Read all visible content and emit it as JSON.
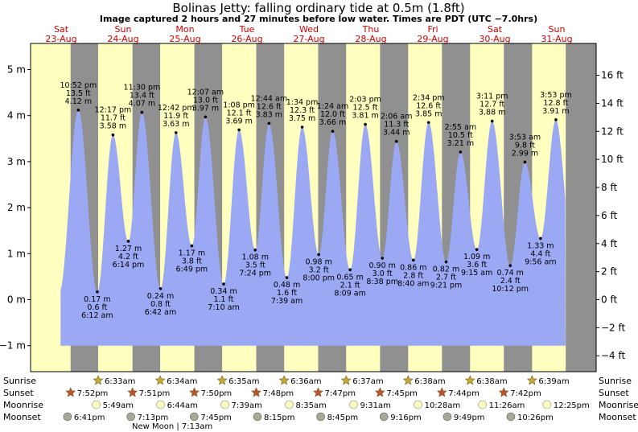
{
  "title": "Bolinas Jetty: falling  ordinary tide at 0.5m (1.8ft)",
  "subtitle": "Image captured 2 hours and 27 minutes before low water. Times are PDT (UTC −7.0hrs)",
  "days": [
    {
      "dow": "Sat",
      "date": "23-Aug"
    },
    {
      "dow": "Sun",
      "date": "24-Aug"
    },
    {
      "dow": "Mon",
      "date": "25-Aug"
    },
    {
      "dow": "Tue",
      "date": "26-Aug"
    },
    {
      "dow": "Wed",
      "date": "27-Aug"
    },
    {
      "dow": "Thu",
      "date": "28-Aug"
    },
    {
      "dow": "Fri",
      "date": "29-Aug"
    },
    {
      "dow": "Sat",
      "date": "30-Aug"
    },
    {
      "dow": "Sun",
      "date": "31-Aug"
    }
  ],
  "chart_data": {
    "type": "area",
    "y_left_unit": "m",
    "y_left_ticks": [
      -1,
      0,
      1,
      2,
      3,
      4,
      5
    ],
    "y_left_labels": [
      "−1 m",
      "0 m",
      "1 m",
      "2 m",
      "3 m",
      "4 m",
      "5 m"
    ],
    "y_right_ticks": [
      -4,
      -2,
      0,
      2,
      4,
      6,
      8,
      10,
      12,
      14,
      16
    ],
    "y_right_labels": [
      "−4 ft",
      "−2 ft",
      "0 ft",
      "2 ft",
      "4 ft",
      "6 ft",
      "8 ft",
      "10 ft",
      "12 ft",
      "14 ft",
      "16 ft"
    ],
    "ylim_m": [
      -1.2,
      5.5
    ],
    "x_start": "2025-08-23 00:00",
    "x_end": "2025-09-01 00:00",
    "tide_events": [
      {
        "time": "6:12 am",
        "ft": "0.6 ft",
        "m": "0.17 m",
        "type": "low",
        "day": 1,
        "hour": 6.2,
        "height": 0.17
      },
      {
        "time": "10:52 pm",
        "ft": "13.5 ft",
        "m": "4.12 m",
        "type": "high",
        "day": 0,
        "hour": 22.87,
        "height": 4.12
      },
      {
        "time": "12:17 pm",
        "ft": "11.7 ft",
        "m": "3.58 m",
        "type": "high",
        "day": 1,
        "hour": 12.28,
        "height": 3.58
      },
      {
        "time": "6:14 pm",
        "ft": "4.2 ft",
        "m": "1.27 m",
        "type": "low",
        "day": 1,
        "hour": 18.23,
        "height": 1.27
      },
      {
        "time": "11:30 pm",
        "ft": "13.4 ft",
        "m": "4.07 m",
        "type": "high",
        "day": 1,
        "hour": 23.5,
        "height": 4.07
      },
      {
        "time": "6:42 am",
        "ft": "0.8 ft",
        "m": "0.24 m",
        "type": "low",
        "day": 2,
        "hour": 6.7,
        "height": 0.24
      },
      {
        "time": "12:42 pm",
        "ft": "11.9 ft",
        "m": "3.63 m",
        "type": "high",
        "day": 2,
        "hour": 12.7,
        "height": 3.63
      },
      {
        "time": "6:49 pm",
        "ft": "3.8 ft",
        "m": "1.17 m",
        "type": "low",
        "day": 2,
        "hour": 18.82,
        "height": 1.17
      },
      {
        "time": "12:07 am",
        "ft": "13.0 ft",
        "m": "3.97 m",
        "type": "high",
        "day": 3,
        "hour": 0.12,
        "height": 3.97
      },
      {
        "time": "7:10 am",
        "ft": "1.1 ft",
        "m": "0.34 m",
        "type": "low",
        "day": 3,
        "hour": 7.17,
        "height": 0.34
      },
      {
        "time": "1:08 pm",
        "ft": "12.1 ft",
        "m": "3.69 m",
        "type": "high",
        "day": 3,
        "hour": 13.13,
        "height": 3.69
      },
      {
        "time": "7:24 pm",
        "ft": "3.5 ft",
        "m": "1.08 m",
        "type": "low",
        "day": 3,
        "hour": 19.4,
        "height": 1.08
      },
      {
        "time": "12:44 am",
        "ft": "12.6 ft",
        "m": "3.83 m",
        "type": "high",
        "day": 4,
        "hour": 0.73,
        "height": 3.83
      },
      {
        "time": "7:39 am",
        "ft": "1.6 ft",
        "m": "0.48 m",
        "type": "low",
        "day": 4,
        "hour": 7.65,
        "height": 0.48
      },
      {
        "time": "1:34 pm",
        "ft": "12.3 ft",
        "m": "3.75 m",
        "type": "high",
        "day": 4,
        "hour": 13.57,
        "height": 3.75
      },
      {
        "time": "8:00 pm",
        "ft": "3.2 ft",
        "m": "0.98 m",
        "type": "low",
        "day": 4,
        "hour": 20.0,
        "height": 0.98
      },
      {
        "time": "1:24 am",
        "ft": "12.0 ft",
        "m": "3.66 m",
        "type": "high",
        "day": 5,
        "hour": 1.4,
        "height": 3.66
      },
      {
        "time": "8:09 am",
        "ft": "2.1 ft",
        "m": "0.65 m",
        "type": "low",
        "day": 5,
        "hour": 8.15,
        "height": 0.65
      },
      {
        "time": "2:03 pm",
        "ft": "12.5 ft",
        "m": "3.81 m",
        "type": "high",
        "day": 5,
        "hour": 14.05,
        "height": 3.81
      },
      {
        "time": "8:38 pm",
        "ft": "3.0 ft",
        "m": "0.90 m",
        "type": "low",
        "day": 5,
        "hour": 20.63,
        "height": 0.9
      },
      {
        "time": "2:06 am",
        "ft": "11.3 ft",
        "m": "3.44 m",
        "type": "high",
        "day": 6,
        "hour": 2.1,
        "height": 3.44
      },
      {
        "time": "8:40 am",
        "ft": "2.8 ft",
        "m": "0.86 m",
        "type": "low",
        "day": 6,
        "hour": 8.67,
        "height": 0.86
      },
      {
        "time": "2:34 pm",
        "ft": "12.6 ft",
        "m": "3.85 m",
        "type": "high",
        "day": 6,
        "hour": 14.57,
        "height": 3.85
      },
      {
        "time": "9:21 pm",
        "ft": "2.7 ft",
        "m": "0.82 m",
        "type": "low",
        "day": 6,
        "hour": 21.35,
        "height": 0.82
      },
      {
        "time": "2:55 am",
        "ft": "10.5 ft",
        "m": "3.21 m",
        "type": "high",
        "day": 7,
        "hour": 2.92,
        "height": 3.21
      },
      {
        "time": "9:15 am",
        "ft": "3.6 ft",
        "m": "1.09 m",
        "type": "low",
        "day": 7,
        "hour": 9.25,
        "height": 1.09
      },
      {
        "time": "3:11 pm",
        "ft": "12.7 ft",
        "m": "3.88 m",
        "type": "high",
        "day": 7,
        "hour": 15.18,
        "height": 3.88
      },
      {
        "time": "10:12 pm",
        "ft": "2.4 ft",
        "m": "0.74 m",
        "type": "low",
        "day": 7,
        "hour": 22.2,
        "height": 0.74
      },
      {
        "time": "3:53 am",
        "ft": "9.8 ft",
        "m": "2.99 m",
        "type": "high",
        "day": 8,
        "hour": 3.88,
        "height": 2.99
      },
      {
        "time": "9:56 am",
        "ft": "4.4 ft",
        "m": "1.33 m",
        "type": "low",
        "day": 8,
        "hour": 9.93,
        "height": 1.33
      },
      {
        "time": "3:53 pm",
        "ft": "12.8 ft",
        "m": "3.91 m",
        "type": "high",
        "day": 8,
        "hour": 15.88,
        "height": 3.91
      }
    ],
    "sunrise": [
      {
        "day": 1,
        "hour": 6.55,
        "label": "6:33am"
      },
      {
        "day": 2,
        "hour": 6.57,
        "label": "6:34am"
      },
      {
        "day": 3,
        "hour": 6.58,
        "label": "6:35am"
      },
      {
        "day": 4,
        "hour": 6.6,
        "label": "6:36am"
      },
      {
        "day": 5,
        "hour": 6.62,
        "label": "6:37am"
      },
      {
        "day": 6,
        "hour": 6.63,
        "label": "6:38am"
      },
      {
        "day": 7,
        "hour": 6.63,
        "label": "6:38am"
      },
      {
        "day": 8,
        "hour": 6.65,
        "label": "6:39am"
      }
    ],
    "sunset": [
      {
        "day": 0,
        "hour": 19.87,
        "label": "7:52pm"
      },
      {
        "day": 1,
        "hour": 19.85,
        "label": "7:51pm"
      },
      {
        "day": 2,
        "hour": 19.83,
        "label": "7:50pm"
      },
      {
        "day": 3,
        "hour": 19.8,
        "label": "7:48pm"
      },
      {
        "day": 4,
        "hour": 19.78,
        "label": "7:47pm"
      },
      {
        "day": 5,
        "hour": 19.75,
        "label": "7:45pm"
      },
      {
        "day": 6,
        "hour": 19.73,
        "label": "7:44pm"
      },
      {
        "day": 7,
        "hour": 19.7,
        "label": "7:42pm"
      }
    ],
    "moonrise": [
      {
        "day": 1,
        "hour": 5.82,
        "label": "5:49am"
      },
      {
        "day": 2,
        "hour": 6.73,
        "label": "6:44am"
      },
      {
        "day": 3,
        "hour": 7.65,
        "label": "7:39am"
      },
      {
        "day": 4,
        "hour": 8.58,
        "label": "8:35am"
      },
      {
        "day": 5,
        "hour": 9.52,
        "label": "9:31am"
      },
      {
        "day": 6,
        "hour": 10.47,
        "label": "10:28am"
      },
      {
        "day": 7,
        "hour": 11.43,
        "label": "11:26am"
      },
      {
        "day": 8,
        "hour": 12.42,
        "label": "12:25pm"
      }
    ],
    "moonset": [
      {
        "day": 0,
        "hour": 18.68,
        "label": "6:41pm"
      },
      {
        "day": 1,
        "hour": 19.22,
        "label": "7:13pm"
      },
      {
        "day": 2,
        "hour": 19.75,
        "label": "7:45pm"
      },
      {
        "day": 3,
        "hour": 20.25,
        "label": "8:15pm"
      },
      {
        "day": 4,
        "hour": 20.75,
        "label": "8:45pm"
      },
      {
        "day": 5,
        "hour": 21.27,
        "label": "9:16pm"
      },
      {
        "day": 6,
        "hour": 21.82,
        "label": "9:49pm"
      },
      {
        "day": 7,
        "hour": 22.43,
        "label": "10:26pm"
      }
    ],
    "moon_phase_note": "New Moon | 7:13am",
    "colors": {
      "night": "#909090",
      "day": "#ffffc0",
      "tide_fill": "#9ba9f5",
      "day_label": "#d00000",
      "sun_star": "#c8a830",
      "sunset_star": "#c05030",
      "moonrise": "#ffffc8",
      "moonset": "#a8a898"
    }
  },
  "rows": {
    "sunrise": "Sunrise",
    "sunset": "Sunset",
    "moonrise": "Moonrise",
    "moonset": "Moonset"
  }
}
